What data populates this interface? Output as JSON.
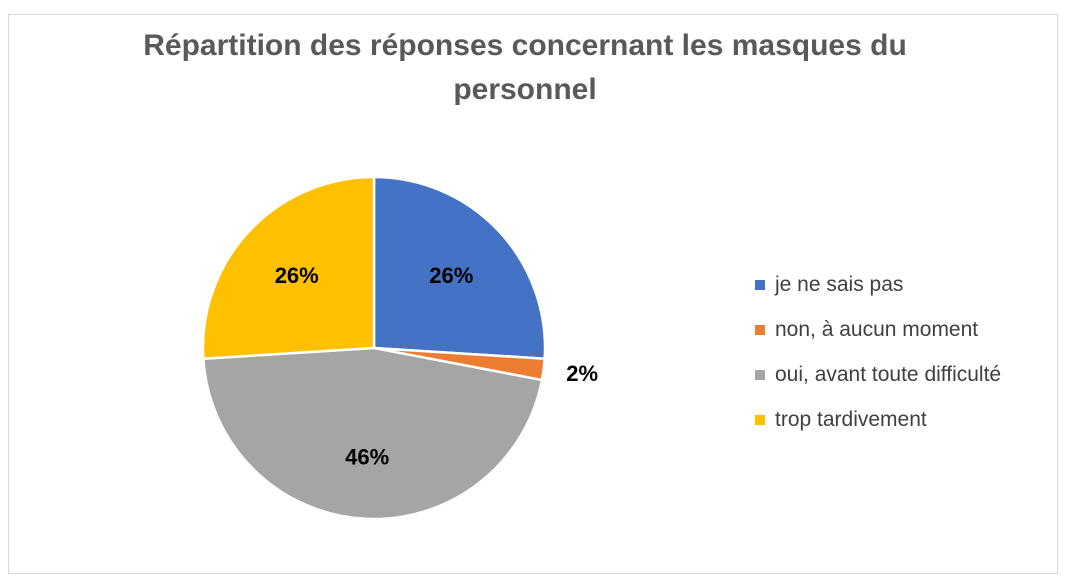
{
  "chart_data": {
    "type": "pie",
    "title": "Répartition des réponses concernant les masques du personnel",
    "categories": [
      "je ne sais pas",
      "non, à aucun moment",
      "oui, avant toute difficulté",
      "trop tardivement"
    ],
    "values": [
      26,
      2,
      46,
      26
    ],
    "data_labels": [
      "26%",
      "2%",
      "46%",
      "26%"
    ],
    "colors": [
      "#4472c4",
      "#ed7d31",
      "#a5a5a5",
      "#ffc000"
    ],
    "legend_position": "right"
  }
}
